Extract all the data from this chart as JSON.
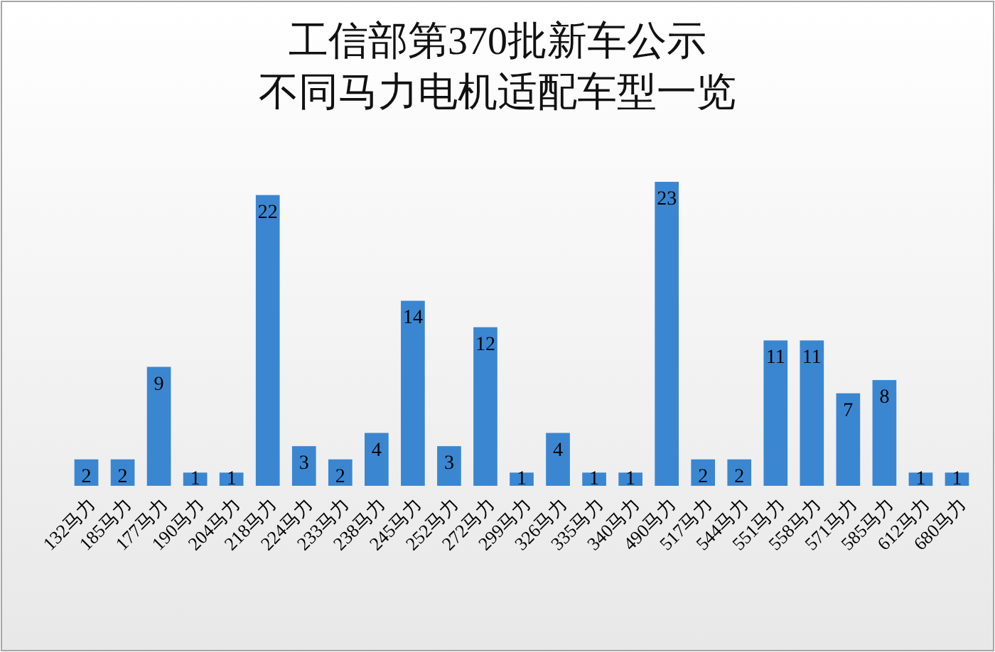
{
  "chart_data": {
    "type": "bar",
    "title": "工信部第370批新车公示",
    "subtitle": "不同马力电机适配车型一览",
    "categories": [
      "132马力",
      "185马力",
      "177马力",
      "190马力",
      "204马力",
      "218马力",
      "224马力",
      "233马力",
      "238马力",
      "245马力",
      "252马力",
      "272马力",
      "299马力",
      "326马力",
      "335马力",
      "340马力",
      "490马力",
      "517马力",
      "544马力",
      "551马力",
      "558马力",
      "571马力",
      "585马力",
      "612马力",
      "680马力"
    ],
    "values": [
      2,
      2,
      9,
      1,
      1,
      22,
      3,
      2,
      4,
      14,
      3,
      12,
      1,
      4,
      1,
      1,
      23,
      2,
      2,
      11,
      11,
      7,
      8,
      1,
      1
    ],
    "color": "#3b86d0",
    "data_labels": true
  }
}
